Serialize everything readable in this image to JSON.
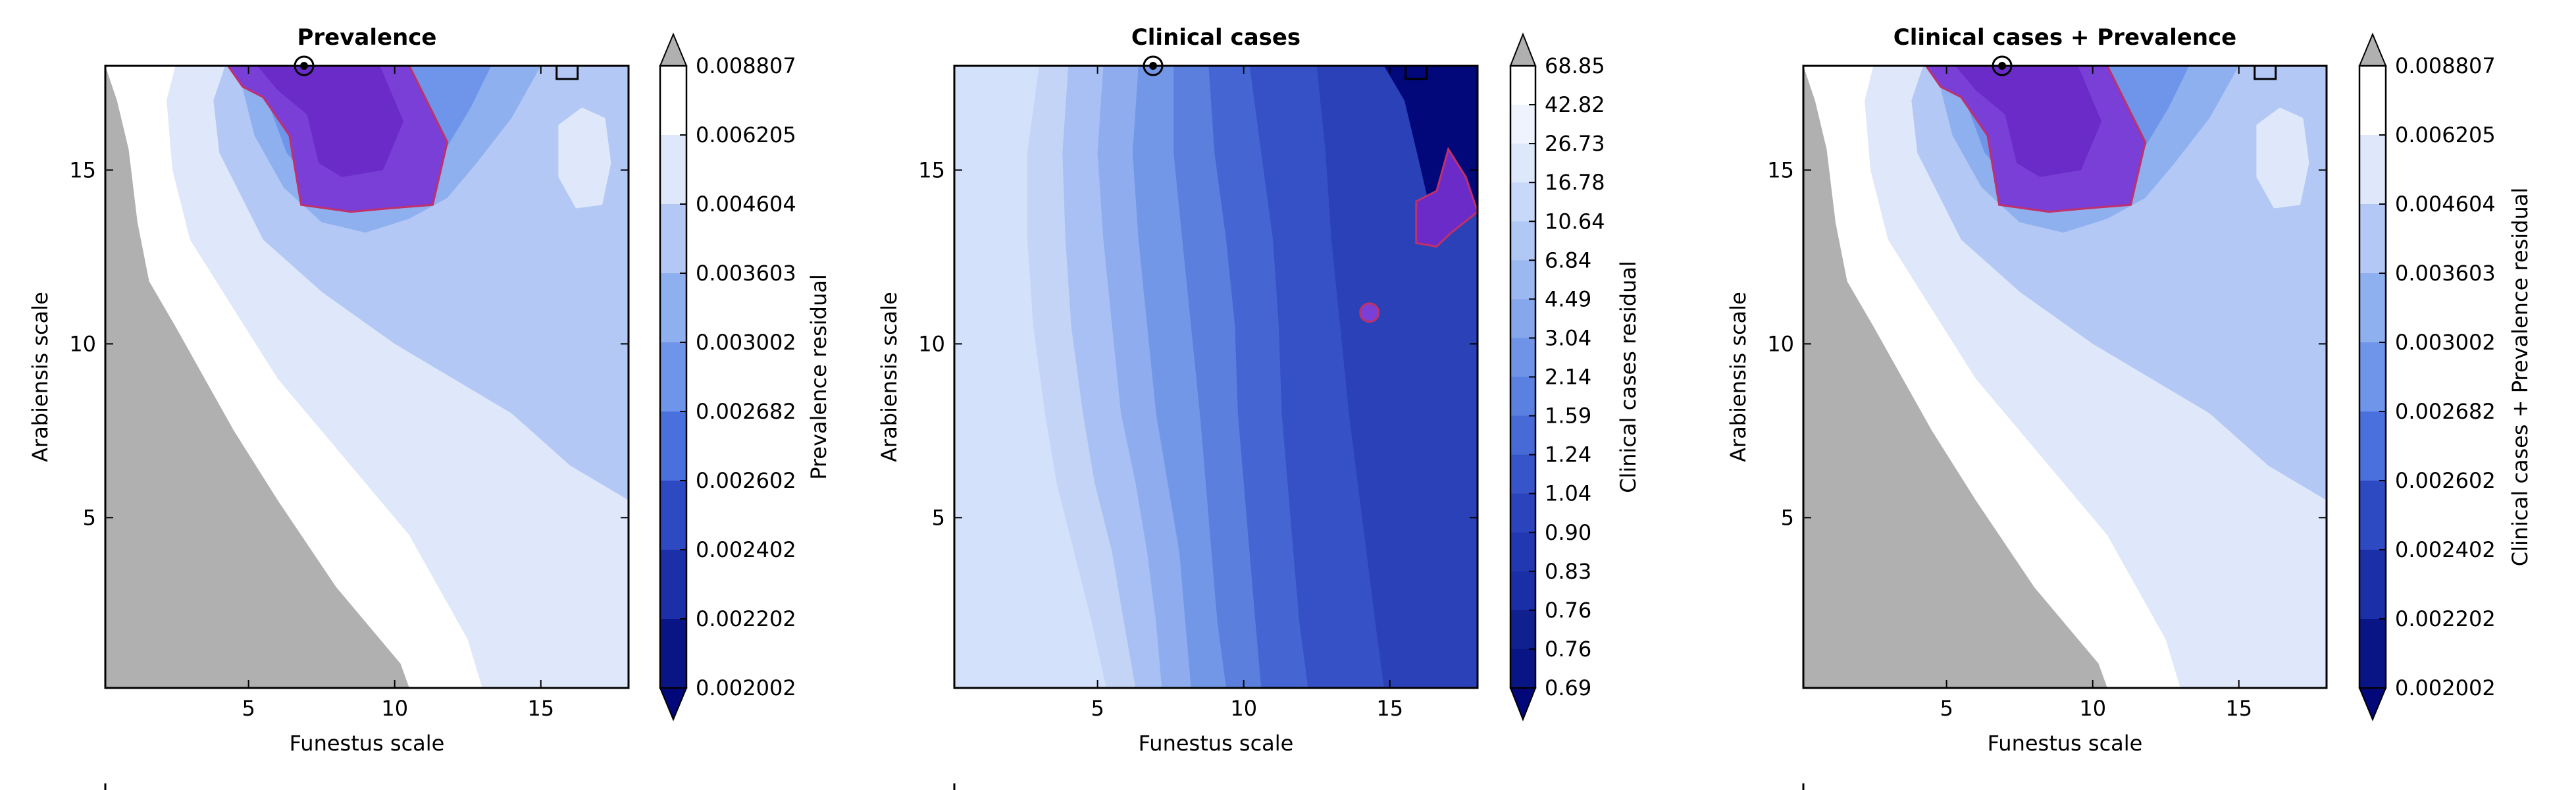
{
  "chart_data": [
    {
      "type": "contour",
      "title": "Prevalence",
      "xlabel": "Funestus scale",
      "ylabel": "Arabiensis scale",
      "xlim": [
        0.1,
        18.0
      ],
      "ylim": [
        0.1,
        18.0
      ],
      "x_ticks": [
        5,
        10,
        15
      ],
      "y_ticks": [
        5,
        10,
        15
      ],
      "x_tick_labels": [
        "5",
        "10",
        "15"
      ],
      "y_tick_labels": [
        "5",
        "10",
        "15"
      ],
      "colorbar": {
        "label": "Prevalence residual",
        "tick_labels": [
          "0.008807",
          "0.006205",
          "0.004604",
          "0.003603",
          "0.003002",
          "0.002682",
          "0.002602",
          "0.002402",
          "0.002202",
          "0.002002"
        ],
        "colors": [
          "#b0b0b0",
          "#ffffff",
          "#dfe8fb",
          "#b4c8f5",
          "#8fb0ef",
          "#6e95ea",
          "#4a70dd",
          "#2e4ac2",
          "#1b2fa9",
          "#0a1585",
          "#02087a"
        ]
      },
      "regions": {
        "gray": [
          [
            0.1,
            18
          ],
          [
            0.1,
            18
          ],
          [
            0.5,
            17
          ],
          [
            0.9,
            15.6
          ],
          [
            1.2,
            13.5
          ],
          [
            1.6,
            11.8
          ],
          [
            2.5,
            10.5
          ],
          [
            3.5,
            9
          ],
          [
            4.5,
            7.5
          ],
          [
            6,
            5.5
          ],
          [
            8,
            3
          ],
          [
            9.5,
            1.5
          ],
          [
            10.2,
            0.8
          ],
          [
            10.5,
            0.1
          ],
          [
            0.1,
            0.1
          ]
        ],
        "white": [
          [
            0.1,
            18
          ],
          [
            2.5,
            18
          ],
          [
            2.2,
            17
          ],
          [
            2.4,
            15
          ],
          [
            3,
            13
          ],
          [
            4.5,
            11
          ],
          [
            6,
            9
          ],
          [
            7.5,
            7.5
          ],
          [
            9,
            6
          ],
          [
            10.5,
            4.5
          ],
          [
            11.5,
            3
          ],
          [
            12.5,
            1.5
          ],
          [
            13,
            0.1
          ],
          [
            10.5,
            0.1
          ],
          [
            10.2,
            0.8
          ],
          [
            9.5,
            1.5
          ],
          [
            8,
            3
          ],
          [
            6,
            5.5
          ],
          [
            4.5,
            7.5
          ],
          [
            3.5,
            9
          ],
          [
            2.5,
            10.5
          ],
          [
            1.6,
            11.8
          ],
          [
            1.2,
            13.5
          ],
          [
            0.9,
            15.6
          ],
          [
            0.5,
            17
          ]
        ],
        "light": [
          [
            2.5,
            18
          ],
          [
            4.2,
            18
          ],
          [
            3.8,
            17
          ],
          [
            4,
            15.5
          ],
          [
            5.5,
            13
          ],
          [
            7.5,
            11.5
          ],
          [
            10,
            10
          ],
          [
            12,
            9
          ],
          [
            14,
            8
          ],
          [
            16,
            6.5
          ],
          [
            18,
            5.5
          ],
          [
            18,
            0.1
          ],
          [
            13,
            0.1
          ],
          [
            12.5,
            1.5
          ],
          [
            11.5,
            3
          ],
          [
            10.5,
            4.5
          ],
          [
            9,
            6
          ],
          [
            7.5,
            7.5
          ],
          [
            6,
            9
          ],
          [
            4.5,
            11
          ],
          [
            3,
            13
          ],
          [
            2.4,
            15
          ],
          [
            2.2,
            17
          ]
        ],
        "mid": [
          [
            4.2,
            18
          ],
          [
            18,
            18
          ],
          [
            18,
            9.5
          ],
          [
            16.5,
            10.5
          ],
          [
            15.5,
            11.5
          ],
          [
            14,
            11
          ],
          [
            12.5,
            10.8
          ],
          [
            11,
            11
          ],
          [
            9.5,
            11.8
          ],
          [
            8,
            12.5
          ],
          [
            6.5,
            13
          ],
          [
            5.5,
            14
          ],
          [
            4.6,
            15.5
          ],
          [
            3.8,
            17
          ]
        ],
        "mid2": [
          [
            4.6,
            18
          ],
          [
            15,
            18
          ],
          [
            14,
            16.5
          ],
          [
            12.8,
            15.2
          ],
          [
            11.8,
            14.2
          ],
          [
            10.5,
            13.6
          ],
          [
            9,
            13.2
          ],
          [
            7.5,
            13.5
          ],
          [
            6.2,
            14.5
          ],
          [
            5.2,
            16
          ]
        ],
        "mid3": [
          [
            5.2,
            18
          ],
          [
            13.3,
            18
          ],
          [
            12.6,
            16.8
          ],
          [
            11.6,
            15.4
          ],
          [
            10.5,
            14.4
          ],
          [
            9,
            14
          ],
          [
            7.5,
            14.3
          ],
          [
            6.3,
            15.5
          ]
        ],
        "purple": [
          [
            4.3,
            18
          ],
          [
            10.5,
            18
          ],
          [
            11.8,
            15.8
          ],
          [
            11.3,
            14
          ],
          [
            9.8,
            13.9
          ],
          [
            8.5,
            13.8
          ],
          [
            6.8,
            14
          ],
          [
            6.4,
            16
          ],
          [
            5.5,
            17.1
          ],
          [
            4.8,
            17.4
          ]
        ],
        "purple2": [
          [
            5.3,
            18
          ],
          [
            9.5,
            18
          ],
          [
            10.3,
            16.4
          ],
          [
            9.6,
            15
          ],
          [
            8.2,
            14.8
          ],
          [
            7.4,
            15.2
          ],
          [
            7,
            16.6
          ],
          [
            6,
            17.3
          ]
        ],
        "white_blob": [
          [
            15.6,
            16.3
          ],
          [
            16.4,
            16.8
          ],
          [
            17.2,
            16.5
          ],
          [
            17.4,
            15.2
          ],
          [
            17.1,
            14
          ],
          [
            16.2,
            13.9
          ],
          [
            15.6,
            14.8
          ]
        ]
      },
      "marker_circle": [
        6.9,
        18.0
      ],
      "marker_square": [
        15.9,
        18.0
      ]
    },
    {
      "type": "contour",
      "title": "Clinical cases",
      "xlabel": "Funestus scale",
      "ylabel": "Arabiensis scale",
      "xlim": [
        0.1,
        18.0
      ],
      "ylim": [
        0.1,
        18.0
      ],
      "x_ticks": [
        5,
        10,
        15
      ],
      "y_ticks": [
        5,
        10,
        15
      ],
      "x_tick_labels": [
        "5",
        "10",
        "15"
      ],
      "y_tick_labels": [
        "5",
        "10",
        "15"
      ],
      "colorbar": {
        "label": "Clinical cases residual",
        "tick_labels": [
          "68.85",
          "42.82",
          "26.73",
          "16.78",
          "10.64",
          "6.84",
          "4.49",
          "3.04",
          "2.14",
          "1.59",
          "1.24",
          "1.04",
          "0.90",
          "0.83",
          "0.76",
          "0.76",
          "0.69"
        ],
        "colors": [
          "#b0b0b0",
          "#ffffff",
          "#eef3fd",
          "#dde8fb",
          "#c8d8f8",
          "#b2c8f4",
          "#9cb8f0",
          "#86a7ec",
          "#6f94e7",
          "#5a80e0",
          "#476ad6",
          "#3755c9",
          "#2b44bc",
          "#2138b0",
          "#1a2fa6",
          "#11208f",
          "#0a1585",
          "#02087a"
        ]
      },
      "bands": [
        {
          "color": "#c3d4f7",
          "xs": [
            3.0,
            2.6,
            2.6,
            2.8,
            3.2,
            3.6,
            4.2,
            4.8,
            5.3
          ]
        },
        {
          "color": "#a8c0f3",
          "xs": [
            4.0,
            3.8,
            3.9,
            4.1,
            4.5,
            4.9,
            5.5,
            5.9,
            6.3
          ]
        },
        {
          "color": "#8eacee",
          "xs": [
            5.2,
            5.0,
            5.2,
            5.5,
            5.8,
            6.3,
            6.7,
            7.0,
            7.2
          ]
        },
        {
          "color": "#7397e7",
          "xs": [
            6.4,
            6.2,
            6.4,
            6.7,
            7.0,
            7.4,
            7.8,
            8.0,
            8.2
          ]
        },
        {
          "color": "#5a7fdd",
          "xs": [
            7.6,
            7.6,
            7.9,
            8.2,
            8.5,
            8.7,
            8.9,
            9.1,
            9.4
          ]
        },
        {
          "color": "#4566d2",
          "xs": [
            8.8,
            9.0,
            9.4,
            9.7,
            9.8,
            10.0,
            10.2,
            10.4,
            10.6
          ]
        },
        {
          "color": "#3651c6",
          "xs": [
            10.2,
            10.6,
            11.0,
            11.2,
            11.3,
            11.5,
            11.7,
            11.9,
            12.2
          ]
        },
        {
          "color": "#2a41b8",
          "xs": [
            12.5,
            12.8,
            13.0,
            13.3,
            13.6,
            13.9,
            14.2,
            14.5,
            14.8
          ]
        }
      ],
      "band_ys": [
        18,
        15.5,
        13,
        10.5,
        8,
        6,
        4,
        2,
        0.1
      ],
      "band_base_color": "#d4e1fa",
      "right_color": "#2036b3",
      "dark_patch": [
        [
          14.8,
          18
        ],
        [
          18,
          18
        ],
        [
          18,
          13.8
        ],
        [
          17.1,
          13.2
        ],
        [
          16.4,
          13.8
        ],
        [
          15.9,
          15.6
        ],
        [
          15.5,
          17
        ]
      ],
      "purple_patch": [
        [
          17.0,
          15.6
        ],
        [
          17.6,
          14.8
        ],
        [
          18,
          13.8
        ],
        [
          17.1,
          13.2
        ],
        [
          16.6,
          12.8
        ],
        [
          15.9,
          12.9
        ],
        [
          15.9,
          14.1
        ],
        [
          16.6,
          14.4
        ]
      ],
      "small_circle": [
        14.3,
        10.9
      ],
      "marker_circle": [
        6.9,
        18.0
      ],
      "marker_square": [
        15.9,
        18.0
      ]
    },
    {
      "type": "contour",
      "title": "Clinical cases + Prevalence",
      "xlabel": "Funestus scale",
      "ylabel": "Arabiensis scale",
      "xlim": [
        0.1,
        18.0
      ],
      "ylim": [
        0.1,
        18.0
      ],
      "x_ticks": [
        5,
        10,
        15
      ],
      "y_ticks": [
        5,
        10,
        15
      ],
      "x_tick_labels": [
        "5",
        "10",
        "15"
      ],
      "y_tick_labels": [
        "5",
        "10",
        "15"
      ],
      "colorbar": {
        "label": "Clinical cases + Prevalence residual",
        "tick_labels": [
          "0.008807",
          "0.006205",
          "0.004604",
          "0.003603",
          "0.003002",
          "0.002682",
          "0.002602",
          "0.002402",
          "0.002202",
          "0.002002"
        ],
        "colors": [
          "#b0b0b0",
          "#ffffff",
          "#dfe8fb",
          "#b4c8f5",
          "#8fb0ef",
          "#6e95ea",
          "#4a70dd",
          "#2e4ac2",
          "#1b2fa9",
          "#0a1585",
          "#02087a"
        ]
      },
      "same_as_first": true,
      "marker_circle": [
        6.9,
        18.0
      ],
      "marker_square": [
        15.9,
        18.0
      ]
    }
  ]
}
